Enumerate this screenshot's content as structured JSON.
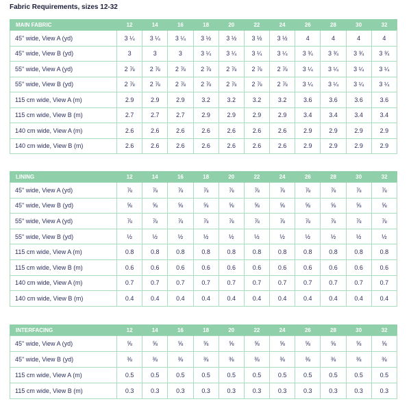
{
  "title": "Fabric Requirements, sizes 12-32",
  "tables": [
    {
      "header": "MAIN FABRIC",
      "columns": [
        "12",
        "14",
        "16",
        "18",
        "20",
        "22",
        "24",
        "26",
        "28",
        "30",
        "32"
      ],
      "rows": [
        {
          "label": "45\" wide, View A (yd)",
          "cells": [
            "3 ¼",
            "3 ¼",
            "3 ¼",
            "3 ½",
            "3 ½",
            "3 ½",
            "3 ½",
            "4",
            "4",
            "4",
            "4"
          ]
        },
        {
          "label": "45\" wide, View B (yd)",
          "cells": [
            "3",
            "3",
            "3",
            "3 ¼",
            "3 ¼",
            "3 ¼",
            "3 ¼",
            "3 ¾",
            "3 ¾",
            "3 ¾",
            "3 ¾"
          ]
        },
        {
          "label": "55\" wide, View A (yd)",
          "cells": [
            "2 ⅞",
            "2 ⅞",
            "2 ⅞",
            "2 ⅞",
            "2 ⅞",
            "2 ⅞",
            "2 ⅞",
            "3 ¼",
            "3 ¼",
            "3 ¼",
            "3 ¼"
          ]
        },
        {
          "label": "55\" wide, View B (yd)",
          "cells": [
            "2 ⅞",
            "2 ⅞",
            "2 ⅞",
            "2 ⅞",
            "2 ⅞",
            "2 ⅞",
            "2 ⅞",
            "3 ¼",
            "3 ¼",
            "3 ¼",
            "3 ¼"
          ]
        },
        {
          "label": "115 cm wide, View A (m)",
          "cells": [
            "2.9",
            "2.9",
            "2.9",
            "3.2",
            "3.2",
            "3.2",
            "3.2",
            "3.6",
            "3.6",
            "3.6",
            "3.6"
          ]
        },
        {
          "label": "115 cm wide, View B (m)",
          "cells": [
            "2.7",
            "2.7",
            "2.7",
            "2.9",
            "2.9",
            "2.9",
            "2.9",
            "3.4",
            "3.4",
            "3.4",
            "3.4"
          ]
        },
        {
          "label": "140 cm wide, View A (m)",
          "cells": [
            "2.6",
            "2.6",
            "2.6",
            "2.6",
            "2.6",
            "2.6",
            "2.6",
            "2.9",
            "2.9",
            "2.9",
            "2.9"
          ]
        },
        {
          "label": "140 cm wide, View B (m)",
          "cells": [
            "2.6",
            "2.6",
            "2.6",
            "2.6",
            "2.6",
            "2.6",
            "2.6",
            "2.9",
            "2.9",
            "2.9",
            "2.9"
          ]
        }
      ]
    },
    {
      "header": "LINING",
      "columns": [
        "12",
        "14",
        "16",
        "18",
        "20",
        "22",
        "24",
        "26",
        "28",
        "30",
        "32"
      ],
      "rows": [
        {
          "label": "45\" wide, View A (yd)",
          "cells": [
            "⅞",
            "⅞",
            "⅞",
            "⅞",
            "⅞",
            "⅞",
            "⅞",
            "⅞",
            "⅞",
            "⅞",
            "⅞"
          ]
        },
        {
          "label": "45\" wide, View B (yd)",
          "cells": [
            "⅝",
            "⅝",
            "⅝",
            "⅝",
            "⅝",
            "⅝",
            "⅝",
            "⅝",
            "⅝",
            "⅝",
            "⅝"
          ]
        },
        {
          "label": "55\" wide, View A (yd)",
          "cells": [
            "⅞",
            "⅞",
            "⅞",
            "⅞",
            "⅞",
            "⅞",
            "⅞",
            "⅞",
            "⅞",
            "⅞",
            "⅞"
          ]
        },
        {
          "label": "55\" wide, View B (yd)",
          "cells": [
            "½",
            "½",
            "½",
            "½",
            "½",
            "½",
            "½",
            "½",
            "½",
            "½",
            "½"
          ]
        },
        {
          "label": "115 cm wide, View A (m)",
          "cells": [
            "0.8",
            "0.8",
            "0.8",
            "0.8",
            "0.8",
            "0.8",
            "0.8",
            "0.8",
            "0.8",
            "0.8",
            "0.8"
          ]
        },
        {
          "label": "115 cm wide, View B (m)",
          "cells": [
            "0.6",
            "0.6",
            "0.6",
            "0.6",
            "0.6",
            "0.6",
            "0.6",
            "0.6",
            "0.6",
            "0.6",
            "0.6"
          ]
        },
        {
          "label": "140 cm wide, View A (m)",
          "cells": [
            "0.7",
            "0.7",
            "0.7",
            "0.7",
            "0.7",
            "0.7",
            "0.7",
            "0.7",
            "0.7",
            "0.7",
            "0.7"
          ]
        },
        {
          "label": "140 cm wide, View B (m)",
          "cells": [
            "0.4",
            "0.4",
            "0.4",
            "0.4",
            "0.4",
            "0.4",
            "0.4",
            "0.4",
            "0.4",
            "0.4",
            "0.4"
          ]
        }
      ]
    },
    {
      "header": "INTERFACING",
      "columns": [
        "12",
        "14",
        "16",
        "18",
        "20",
        "22",
        "24",
        "26",
        "28",
        "30",
        "32"
      ],
      "rows": [
        {
          "label": "45\" wide, View A (yd)",
          "cells": [
            "⅝",
            "⅝",
            "⅝",
            "⅝",
            "⅝",
            "⅝",
            "⅝",
            "⅝",
            "⅝",
            "⅝",
            "⅝"
          ]
        },
        {
          "label": "45\" wide, View B (yd)",
          "cells": [
            "⅜",
            "⅜",
            "⅜",
            "⅜",
            "⅜",
            "⅜",
            "⅜",
            "⅜",
            "⅜",
            "⅜",
            "⅜"
          ]
        },
        {
          "label": "115 cm wide, View A (m)",
          "cells": [
            "0.5",
            "0.5",
            "0.5",
            "0.5",
            "0.5",
            "0.5",
            "0.5",
            "0.5",
            "0.5",
            "0.5",
            "0.5"
          ]
        },
        {
          "label": "115 cm wide, View B (m)",
          "cells": [
            "0.3",
            "0.3",
            "0.3",
            "0.3",
            "0.3",
            "0.3",
            "0.3",
            "0.3",
            "0.3",
            "0.3",
            "0.3"
          ]
        }
      ]
    }
  ]
}
